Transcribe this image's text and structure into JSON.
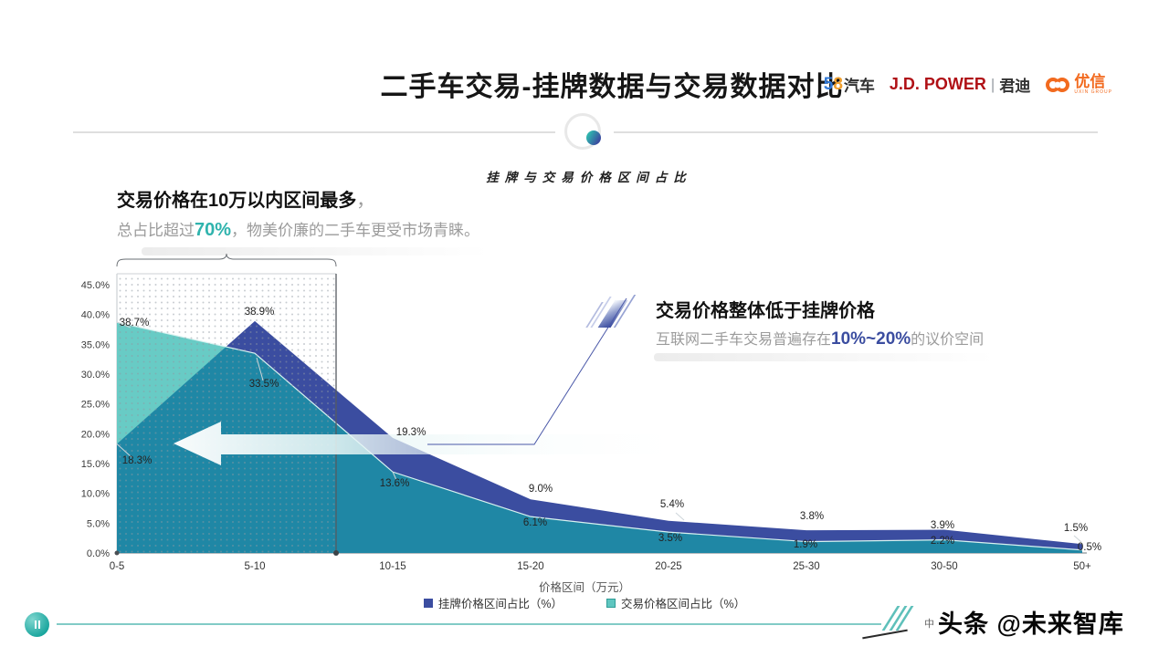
{
  "header": {
    "title": "二手车交易-挂牌数据与交易数据对比",
    "logos": {
      "l58_5": "5",
      "l58_8": "8",
      "l58_cn": "汽车",
      "jdp": "J.D. POWER",
      "jdp_sep": "|",
      "jdp_cn": "君迪",
      "uxin": "优信",
      "uxin_sub": "UXIN GROUP",
      "jdp_color": "#b01116",
      "uxin_color": "#f26a1e"
    }
  },
  "left_callout": {
    "title": "交易价格在10万以内区间最多",
    "title_suffix": "，",
    "lead": "总占比超过",
    "highlight": "70%",
    "rest": "，物美价廉的二手车更受市场青睐。",
    "highlight_color": "#2fb3ad"
  },
  "right_callout": {
    "title": "交易价格整体低于挂牌价格",
    "lead": "互联网二手车交易普遍存在",
    "highlight": "10%~20%",
    "rest": "的议价空间",
    "highlight_color": "#3b4da0"
  },
  "chart_data": {
    "type": "area",
    "title": "挂牌与交易价格区间占比",
    "categories": [
      "0-5",
      "5-10",
      "10-15",
      "15-20",
      "20-25",
      "25-30",
      "30-50",
      "50+"
    ],
    "series": [
      {
        "name": "挂牌价格区间占比（%）",
        "color": "#3b4da0",
        "values": [
          18.3,
          38.9,
          19.3,
          9.0,
          5.4,
          3.8,
          3.9,
          1.5
        ]
      },
      {
        "name": "交易价格区间占比（%）",
        "color": "#1f87a5",
        "color_light": "#68cbc5",
        "values": [
          38.7,
          33.5,
          13.6,
          6.1,
          3.5,
          1.9,
          2.2,
          0.5
        ]
      }
    ],
    "xlabel": "价格区间（万元）",
    "ylabel": "",
    "ylim": [
      0,
      45
    ],
    "y_ticks": [
      "0.0%",
      "5.0%",
      "10.0%",
      "15.0%",
      "20.0%",
      "25.0%",
      "30.0%",
      "35.0%",
      "40.0%",
      "45.0%"
    ],
    "grid": false,
    "legend_position": "bottom",
    "annotations": {
      "hatch_region_categories": [
        "0-5",
        "5-10"
      ],
      "arrow_direction": "left"
    }
  },
  "footer": {
    "watermark_prefix": "中",
    "watermark": "头条 @未来智库"
  }
}
